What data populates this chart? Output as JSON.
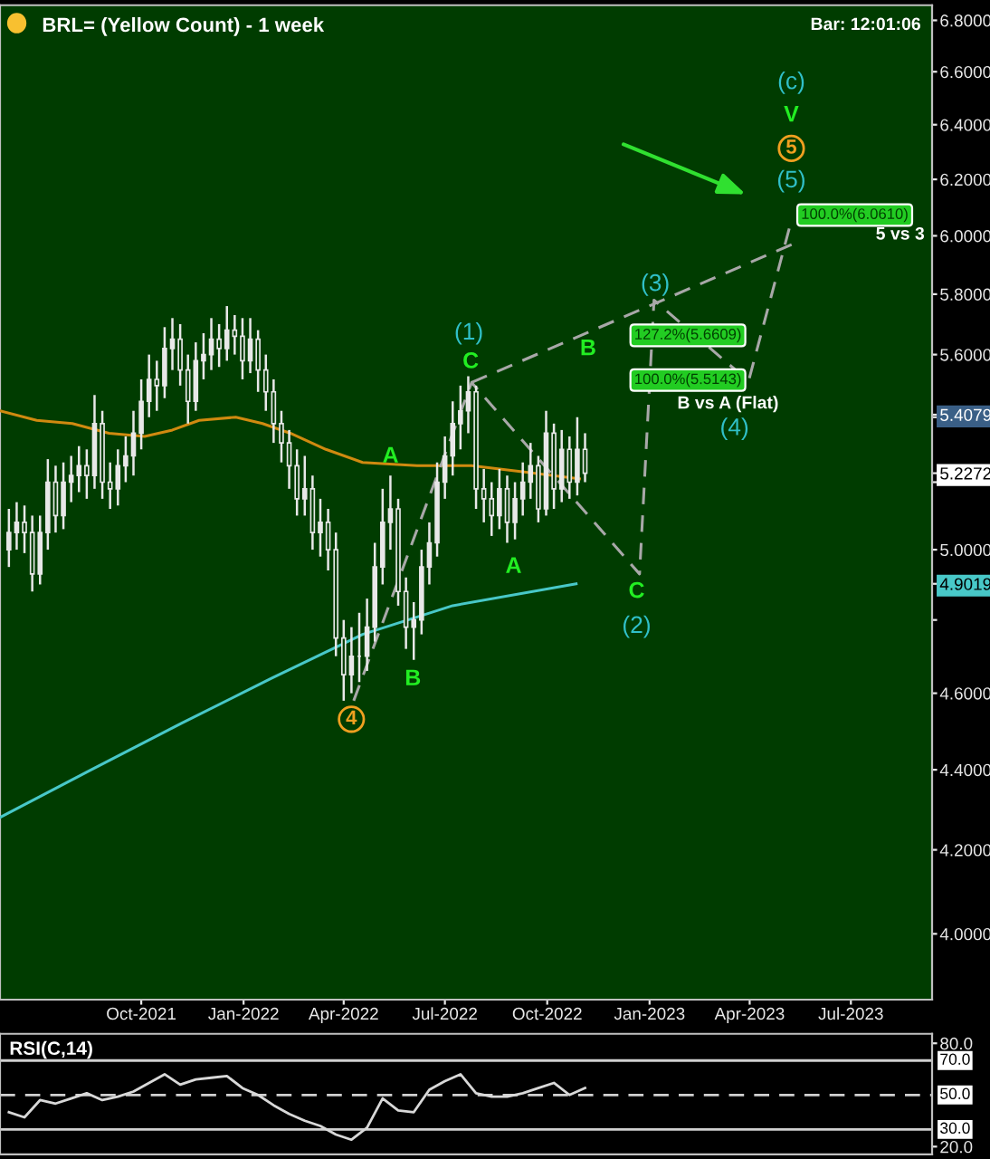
{
  "chart_data": [
    {
      "type": "candlestick",
      "title": "BRL= (Yellow Count) - 1 week",
      "subtitle": "Bar: 12:01:06",
      "color": "#e8e8e8",
      "log": true,
      "x": [
        "2021-06-04",
        "2021-06-11",
        "2021-06-18",
        "2021-06-25",
        "2021-07-02",
        "2021-07-09",
        "2021-07-16",
        "2021-07-23",
        "2021-07-30",
        "2021-08-06",
        "2021-08-13",
        "2021-08-20",
        "2021-08-27",
        "2021-09-03",
        "2021-09-10",
        "2021-09-17",
        "2021-09-24",
        "2021-10-01",
        "2021-10-08",
        "2021-10-15",
        "2021-10-22",
        "2021-10-29",
        "2021-11-05",
        "2021-11-12",
        "2021-11-19",
        "2021-11-26",
        "2021-12-03",
        "2021-12-10",
        "2021-12-17",
        "2021-12-24",
        "2021-12-31",
        "2022-01-07",
        "2022-01-14",
        "2022-01-21",
        "2022-01-28",
        "2022-02-04",
        "2022-02-11",
        "2022-02-18",
        "2022-02-25",
        "2022-03-04",
        "2022-03-11",
        "2022-03-18",
        "2022-03-25",
        "2022-04-01",
        "2022-04-08",
        "2022-04-15",
        "2022-04-22",
        "2022-04-29",
        "2022-05-06",
        "2022-05-13",
        "2022-05-20",
        "2022-05-27",
        "2022-06-03",
        "2022-06-10",
        "2022-06-17",
        "2022-06-24",
        "2022-07-01",
        "2022-07-08",
        "2022-07-15",
        "2022-07-22",
        "2022-07-29",
        "2022-08-05",
        "2022-08-12",
        "2022-08-19",
        "2022-08-26",
        "2022-09-02",
        "2022-09-09",
        "2022-09-16",
        "2022-09-23",
        "2022-09-30",
        "2022-10-07",
        "2022-10-14",
        "2022-10-21",
        "2022-10-28",
        "2022-11-04"
      ],
      "ohlc": [
        [
          5.0,
          5.12,
          4.95,
          5.05
        ],
        [
          5.05,
          5.14,
          5.0,
          5.08
        ],
        [
          5.08,
          5.13,
          4.99,
          5.05
        ],
        [
          5.05,
          5.1,
          4.88,
          4.93
        ],
        [
          4.93,
          5.1,
          4.9,
          5.05
        ],
        [
          5.05,
          5.27,
          5.0,
          5.2
        ],
        [
          5.2,
          5.25,
          5.05,
          5.1
        ],
        [
          5.1,
          5.26,
          5.06,
          5.2
        ],
        [
          5.2,
          5.28,
          5.14,
          5.22
        ],
        [
          5.22,
          5.31,
          5.17,
          5.25
        ],
        [
          5.25,
          5.3,
          5.15,
          5.22
        ],
        [
          5.22,
          5.47,
          5.18,
          5.38
        ],
        [
          5.38,
          5.42,
          5.15,
          5.2
        ],
        [
          5.2,
          5.26,
          5.12,
          5.18
        ],
        [
          5.18,
          5.3,
          5.13,
          5.25
        ],
        [
          5.25,
          5.34,
          5.2,
          5.28
        ],
        [
          5.28,
          5.42,
          5.22,
          5.35
        ],
        [
          5.35,
          5.52,
          5.3,
          5.45
        ],
        [
          5.45,
          5.6,
          5.4,
          5.52
        ],
        [
          5.52,
          5.58,
          5.42,
          5.5
        ],
        [
          5.5,
          5.69,
          5.46,
          5.62
        ],
        [
          5.62,
          5.72,
          5.55,
          5.65
        ],
        [
          5.65,
          5.7,
          5.5,
          5.55
        ],
        [
          5.55,
          5.6,
          5.38,
          5.45
        ],
        [
          5.45,
          5.64,
          5.42,
          5.58
        ],
        [
          5.58,
          5.67,
          5.52,
          5.6
        ],
        [
          5.6,
          5.72,
          5.55,
          5.65
        ],
        [
          5.65,
          5.7,
          5.56,
          5.62
        ],
        [
          5.62,
          5.76,
          5.58,
          5.68
        ],
        [
          5.68,
          5.73,
          5.6,
          5.66
        ],
        [
          5.66,
          5.72,
          5.52,
          5.58
        ],
        [
          5.58,
          5.72,
          5.54,
          5.65
        ],
        [
          5.65,
          5.68,
          5.48,
          5.55
        ],
        [
          5.55,
          5.6,
          5.42,
          5.48
        ],
        [
          5.48,
          5.52,
          5.32,
          5.38
        ],
        [
          5.38,
          5.42,
          5.26,
          5.32
        ],
        [
          5.32,
          5.36,
          5.18,
          5.25
        ],
        [
          5.25,
          5.3,
          5.1,
          5.15
        ],
        [
          5.15,
          5.28,
          5.1,
          5.18
        ],
        [
          5.18,
          5.22,
          5.0,
          5.05
        ],
        [
          5.05,
          5.15,
          4.98,
          5.08
        ],
        [
          5.08,
          5.12,
          4.94,
          5.0
        ],
        [
          5.0,
          5.05,
          4.7,
          4.75
        ],
        [
          4.75,
          4.8,
          4.58,
          4.65
        ],
        [
          4.65,
          4.78,
          4.6,
          4.7
        ],
        [
          4.7,
          4.82,
          4.63,
          4.7
        ],
        [
          4.7,
          4.86,
          4.66,
          4.78
        ],
        [
          4.78,
          5.02,
          4.74,
          4.95
        ],
        [
          4.95,
          5.18,
          4.9,
          5.08
        ],
        [
          5.08,
          5.22,
          5.0,
          5.12
        ],
        [
          5.12,
          5.15,
          4.84,
          4.88
        ],
        [
          4.88,
          4.92,
          4.72,
          4.78
        ],
        [
          4.78,
          4.85,
          4.69,
          4.8
        ],
        [
          4.8,
          5.0,
          4.76,
          4.95
        ],
        [
          4.95,
          5.08,
          4.9,
          5.02
        ],
        [
          5.02,
          5.26,
          4.98,
          5.2
        ],
        [
          5.2,
          5.34,
          5.15,
          5.28
        ],
        [
          5.28,
          5.45,
          5.22,
          5.38
        ],
        [
          5.38,
          5.5,
          5.3,
          5.42
        ],
        [
          5.42,
          5.53,
          5.35,
          5.48
        ],
        [
          5.48,
          5.5,
          5.12,
          5.18
        ],
        [
          5.18,
          5.24,
          5.08,
          5.15
        ],
        [
          5.15,
          5.2,
          5.04,
          5.1
        ],
        [
          5.1,
          5.24,
          5.06,
          5.18
        ],
        [
          5.18,
          5.22,
          5.02,
          5.08
        ],
        [
          5.08,
          5.2,
          5.03,
          5.15
        ],
        [
          5.15,
          5.26,
          5.1,
          5.2
        ],
        [
          5.2,
          5.32,
          5.15,
          5.25
        ],
        [
          5.25,
          5.28,
          5.08,
          5.12
        ],
        [
          5.12,
          5.42,
          5.1,
          5.35
        ],
        [
          5.35,
          5.38,
          5.12,
          5.18
        ],
        [
          5.18,
          5.36,
          5.14,
          5.3
        ],
        [
          5.3,
          5.34,
          5.15,
          5.2
        ],
        [
          5.2,
          5.4,
          5.16,
          5.3
        ],
        [
          5.3,
          5.35,
          5.2,
          5.2272
        ]
      ],
      "series": [
        {
          "type": "line",
          "color": "#d08a10",
          "line_style": "solid",
          "x": [
            "2021-05-27",
            "2021-06-29",
            "2021-07-31",
            "2021-09-02",
            "2021-10-04",
            "2021-10-29",
            "2021-11-22",
            "2021-12-25",
            "2022-01-18",
            "2022-02-12",
            "2022-03-16",
            "2022-04-18",
            "2022-06-06",
            "2022-07-25",
            "2022-09-12",
            "2022-10-30"
          ],
          "values": [
            5.42,
            5.39,
            5.38,
            5.35,
            5.34,
            5.36,
            5.39,
            5.4,
            5.38,
            5.35,
            5.3,
            5.26,
            5.25,
            5.25,
            5.23,
            5.21
          ]
        },
        {
          "type": "line",
          "color": "#48c8c8",
          "line_style": "solid",
          "x": [
            "2021-05-27",
            "2021-08-17",
            "2021-11-06",
            "2022-01-26",
            "2022-04-18",
            "2022-07-08",
            "2022-10-27"
          ],
          "values": [
            4.28,
            4.4,
            4.52,
            4.64,
            4.76,
            4.84,
            4.9019
          ]
        },
        {
          "type": "line",
          "color": "#a8a8a8",
          "line_style": "dashed",
          "x": [
            "2022-04-10",
            "2022-07-25",
            "2022-12-23",
            "2023-01-05",
            "2023-03-31",
            "2023-05-09"
          ],
          "values": [
            4.58,
            5.51,
            4.93,
            5.78,
            5.5143,
            6.061
          ]
        },
        {
          "type": "line",
          "color": "#a8a8a8",
          "line_style": "dashed",
          "x": [
            "2022-07-25",
            "2023-05-09"
          ],
          "values": [
            5.51,
            5.97
          ]
        }
      ],
      "annotations": [
        "4",
        "A",
        "B",
        "C",
        "(1)",
        "A",
        "B",
        "C",
        "(2)",
        "(3)",
        "127.2%(5.6609)",
        "100.0%(5.5143)",
        "B vs A (Flat)",
        "(4)",
        "(5)",
        "5",
        "V",
        "(c)",
        "100.0%(6.0610)",
        "5 vs 3"
      ],
      "xlim": [
        "2021-05-27",
        "2023-09-12"
      ],
      "ylim": [
        3.85,
        6.86
      ],
      "xticks": [
        {
          "value": "2021-10-01",
          "label": "Oct-2021"
        },
        {
          "value": "2022-01-01",
          "label": "Jan-2022"
        },
        {
          "value": "2022-04-01",
          "label": "Apr-2022"
        },
        {
          "value": "2022-07-01",
          "label": "Jul-2022"
        },
        {
          "value": "2022-10-01",
          "label": "Oct-2022"
        },
        {
          "value": "2023-01-01",
          "label": "Jan-2023"
        },
        {
          "value": "2023-04-01",
          "label": "Apr-2023"
        },
        {
          "value": "2023-07-01",
          "label": "Jul-2023"
        }
      ],
      "yticks": [
        {
          "value": 4.0,
          "label": "4.0000"
        },
        {
          "value": 4.2,
          "label": "4.2000"
        },
        {
          "value": 4.4,
          "label": "4.4000"
        },
        {
          "value": 4.6,
          "label": "4.6000"
        },
        {
          "value": 4.8,
          "label": null
        },
        {
          "value": 5.0,
          "label": "5.0000"
        },
        {
          "value": 5.2,
          "label": null
        },
        {
          "value": 5.4,
          "label": null
        },
        {
          "value": 5.6,
          "label": "5.6000"
        },
        {
          "value": 5.8,
          "label": "5.8000"
        },
        {
          "value": 6.0,
          "label": "6.0000"
        },
        {
          "value": 6.2,
          "label": "6.2000"
        },
        {
          "value": 6.4,
          "label": "6.4000"
        },
        {
          "value": 6.6,
          "label": "6.6000"
        },
        {
          "value": 6.8,
          "label": "6.8000"
        },
        {
          "value": 5.4079,
          "label": "5.4079"
        },
        {
          "value": 5.2272,
          "label": "5.2272"
        },
        {
          "value": 4.9019,
          "label": "4.9019"
        }
      ]
    },
    {
      "type": "line",
      "title": "RSI(C,14)",
      "color": "#d8d8d8",
      "tick_labels": "y",
      "x": [
        "2021-06-04",
        "2021-06-18",
        "2021-07-02",
        "2021-07-16",
        "2021-07-30",
        "2021-08-13",
        "2021-08-27",
        "2021-09-10",
        "2021-09-24",
        "2021-10-08",
        "2021-10-22",
        "2021-11-05",
        "2021-11-19",
        "2021-12-03",
        "2021-12-17",
        "2021-12-31",
        "2022-01-14",
        "2022-01-28",
        "2022-02-11",
        "2022-02-25",
        "2022-03-11",
        "2022-03-25",
        "2022-04-08",
        "2022-04-22",
        "2022-05-06",
        "2022-05-20",
        "2022-06-03",
        "2022-06-17",
        "2022-07-01",
        "2022-07-15",
        "2022-07-29",
        "2022-08-12",
        "2022-08-26",
        "2022-09-09",
        "2022-09-23",
        "2022-10-07",
        "2022-10-21",
        "2022-11-04"
      ],
      "values": [
        40,
        37,
        47,
        45,
        48,
        51,
        47,
        49,
        52,
        57,
        62,
        56,
        59,
        60,
        61,
        54,
        50,
        44,
        39,
        35,
        32,
        27,
        24,
        31,
        48,
        41,
        40,
        53,
        58,
        62,
        51,
        49,
        49,
        51,
        54,
        57,
        50,
        54
      ],
      "xlim": [
        "2021-05-27",
        "2023-09-12"
      ],
      "ylim": [
        15.5,
        85.5
      ],
      "yticks": [
        {
          "value": 20,
          "label": "20.0"
        },
        {
          "value": 80,
          "label": "80.0"
        }
      ],
      "ref_lines": [
        {
          "axis": "y",
          "value": 70,
          "label": "70.0",
          "line_style": "solid",
          "color": "#d0d0d0"
        },
        {
          "axis": "y",
          "value": 50,
          "label": "50.0",
          "line_style": "dashed",
          "color": "#d0d0d0"
        },
        {
          "axis": "y",
          "value": 30,
          "label": "30.0",
          "line_style": "solid",
          "color": "#d0d0d0"
        }
      ]
    }
  ]
}
